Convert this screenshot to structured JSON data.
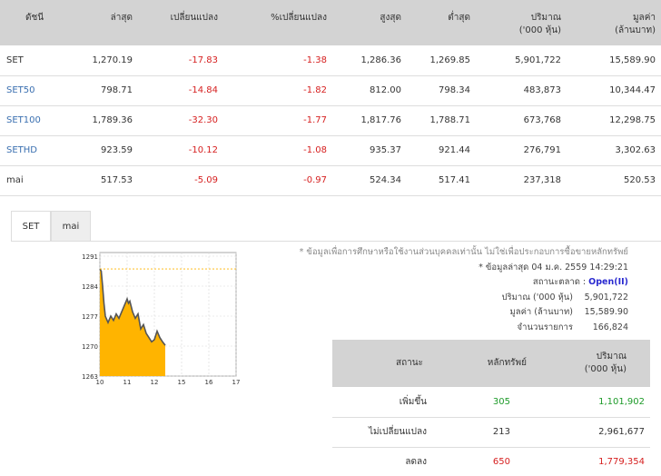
{
  "index_table": {
    "headers": [
      "ดัชนี",
      "ล่าสุด",
      "เปลี่ยนแปลง",
      "%เปลี่ยนแปลง",
      "สูงสุด",
      "ต่ำสุด",
      "ปริมาณ\n('000 หุ้น)",
      "มูลค่า\n(ล้านบาท)"
    ],
    "rows": [
      {
        "name": "SET",
        "last": "1,270.19",
        "change": "-17.83",
        "pct": "-1.38",
        "high": "1,286.36",
        "low": "1,269.85",
        "volume": "5,901,722",
        "value": "15,589.90"
      },
      {
        "name": "SET50",
        "last": "798.71",
        "change": "-14.84",
        "pct": "-1.82",
        "high": "812.00",
        "low": "798.34",
        "volume": "483,873",
        "value": "10,344.47"
      },
      {
        "name": "SET100",
        "last": "1,789.36",
        "change": "-32.30",
        "pct": "-1.77",
        "high": "1,817.76",
        "low": "1,788.71",
        "volume": "673,768",
        "value": "12,298.75"
      },
      {
        "name": "SETHD",
        "last": "923.59",
        "change": "-10.12",
        "pct": "-1.08",
        "high": "935.37",
        "low": "921.44",
        "volume": "276,791",
        "value": "3,302.63"
      },
      {
        "name": "mai",
        "last": "517.53",
        "change": "-5.09",
        "pct": "-0.97",
        "high": "524.34",
        "low": "517.41",
        "volume": "237,318",
        "value": "520.53"
      }
    ]
  },
  "tabs": [
    {
      "label": "SET",
      "active": true
    },
    {
      "label": "mai",
      "active": false
    }
  ],
  "info": {
    "disclaimer": "* ข้อมูลเพื่อการศึกษาหรือใช้งานส่วนบุคคลเท่านั้น ไม่ใช่เพื่อประกอบการซื้อขายหลักทรัพย์",
    "updated": "* ข้อมูลล่าสุด 04 ม.ค. 2559 14:29:21",
    "status_label": "สถานะตลาด :",
    "status_value": "Open(II)",
    "volume_label": "ปริมาณ ('000 หุ้น)",
    "volume_value": "5,901,722",
    "value_label": "มูลค่า (ล้านบาท)",
    "value_value": "15,589.90",
    "trades_label": "จำนวนรายการ",
    "trades_value": "166,824"
  },
  "summary_table": {
    "headers": [
      "สถานะ",
      "หลักทรัพย์",
      "ปริมาณ\n('000 หุ้น)"
    ],
    "rows": [
      {
        "status": "เพิ่มขึ้น",
        "securities": "305",
        "volume": "1,101,902",
        "color": "#1e9b2a"
      },
      {
        "status": "ไม่เปลี่ยนแปลง",
        "securities": "213",
        "volume": "2,961,677",
        "color": "#333333"
      },
      {
        "status": "ลดลง",
        "securities": "650",
        "volume": "1,779,354",
        "color": "#d62020"
      }
    ]
  },
  "chart_data": {
    "type": "area",
    "y_ticks": [
      "1291",
      "1284",
      "1277",
      "1270",
      "1263"
    ],
    "y_tick_values": [
      1291,
      1284,
      1277,
      1270,
      1263
    ],
    "x_ticks": [
      "10",
      "11",
      "12",
      "15",
      "16",
      "17"
    ],
    "x_tick_positions": [
      10,
      11,
      12,
      13,
      14,
      15
    ],
    "ylim": [
      1263,
      1291
    ],
    "xlim": [
      10,
      15
    ],
    "prev_close": 1288.02,
    "fill_color": "#ffb400",
    "line_color": "#555555",
    "ref_line_color": "#ffb400",
    "x": [
      10.0,
      10.05,
      10.1,
      10.15,
      10.2,
      10.3,
      10.4,
      10.5,
      10.6,
      10.7,
      10.8,
      10.9,
      11.0,
      11.05,
      11.1,
      11.2,
      11.3,
      11.4,
      11.5,
      11.6,
      11.7,
      11.8,
      11.9,
      12.0,
      12.1,
      12.2,
      12.3,
      12.4
    ],
    "y": [
      1288,
      1287.5,
      1284,
      1280,
      1277,
      1275.5,
      1277,
      1276,
      1277.5,
      1276.5,
      1278,
      1279.5,
      1281,
      1280,
      1280.5,
      1278,
      1276.5,
      1277.5,
      1274,
      1275,
      1273,
      1272,
      1271,
      1271.5,
      1273.5,
      1272,
      1271,
      1270.2
    ]
  }
}
